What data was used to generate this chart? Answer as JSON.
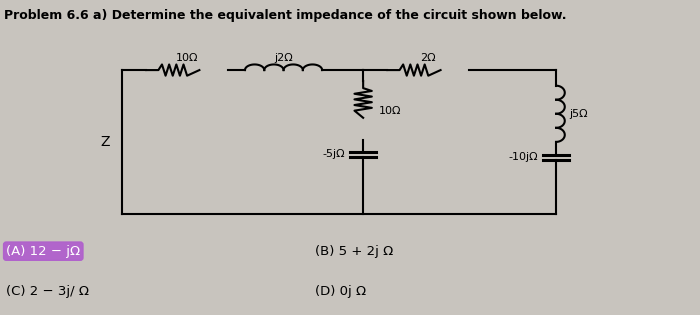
{
  "title": "Problem 6.6 a) Determine the equivalent impedance of the circuit shown below.",
  "title_fontsize": 9.0,
  "bg_color": "#c8c4be",
  "paper_color": "#dde8f0",
  "answer_A": "(A) 12 − jΩ",
  "answer_B": "(B) 5 + 2j Ω",
  "answer_C": "(C) 2 − 3j/ Ω",
  "answer_D": "(D) 0j Ω",
  "answer_A_highlight": "#b060cc",
  "label_10ohm_h": "10Ω",
  "label_j2ohm": "j2Ω",
  "label_2ohm": "2Ω",
  "label_10ohm_v": "10Ω",
  "label_j5ohm": "j5Ω",
  "label_m5johm": "-5jΩ",
  "label_m10johm": "-10jΩ",
  "label_Z": "Z",
  "lw": 1.5
}
